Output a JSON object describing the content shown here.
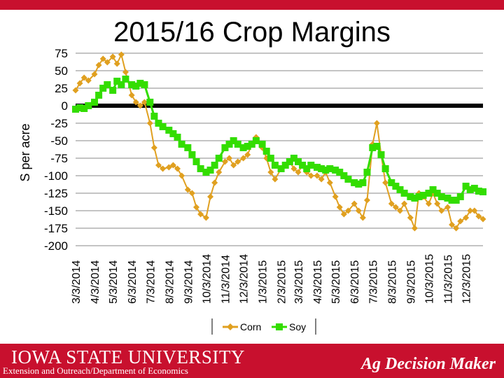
{
  "header": {
    "title": "2015/16 Crop Margins"
  },
  "footer": {
    "university": "IOWA STATE UNIVERSITY",
    "extension": "Extension and Outreach/Department of Economics",
    "brand": "Ag Decision Maker"
  },
  "colors": {
    "corn": "#e0a020",
    "soy": "#33dd00",
    "brand_red": "#c8102e"
  },
  "chart_data": {
    "type": "line",
    "title": "2015/16 Crop Margins",
    "ylabel": "S per acre",
    "xlabel": "",
    "ylim": [
      -200,
      75
    ],
    "yticks": [
      75,
      50,
      25,
      0,
      -25,
      -50,
      -75,
      -100,
      -125,
      -150,
      -175,
      -200
    ],
    "grid": true,
    "legend": "bottom",
    "x_tick_labels": [
      "3/3/2014",
      "4/3/2014",
      "5/3/2014",
      "6/3/2014",
      "7/3/2014",
      "8/3/2014",
      "9/3/2014",
      "10/3/2014",
      "11/3/2014",
      "12/3/2014",
      "1/3/2015",
      "2/3/2015",
      "3/3/2015",
      "4/3/2015",
      "5/3/2015",
      "6/3/2015",
      "7/3/2015",
      "8/3/2015",
      "9/3/2015",
      "10/3/2015",
      "11/3/2015",
      "12/3/2015"
    ],
    "series": [
      {
        "name": "Corn",
        "color": "#e0a020",
        "points": [
          [
            "3/3/2014",
            22
          ],
          [
            "3/10/2014",
            32
          ],
          [
            "3/17/2014",
            40
          ],
          [
            "3/24/2014",
            36
          ],
          [
            "4/3/2014",
            45
          ],
          [
            "4/10/2014",
            58
          ],
          [
            "4/17/2014",
            67
          ],
          [
            "4/24/2014",
            62
          ],
          [
            "5/3/2014",
            70
          ],
          [
            "5/10/2014",
            60
          ],
          [
            "5/17/2014",
            73
          ],
          [
            "5/24/2014",
            48
          ],
          [
            "6/3/2014",
            15
          ],
          [
            "6/10/2014",
            5
          ],
          [
            "6/17/2014",
            0
          ],
          [
            "6/24/2014",
            5
          ],
          [
            "7/3/2014",
            -25
          ],
          [
            "7/10/2014",
            -60
          ],
          [
            "7/17/2014",
            -85
          ],
          [
            "7/24/2014",
            -90
          ],
          [
            "8/3/2014",
            -88
          ],
          [
            "8/10/2014",
            -85
          ],
          [
            "8/17/2014",
            -90
          ],
          [
            "8/24/2014",
            -100
          ],
          [
            "9/3/2014",
            -120
          ],
          [
            "9/10/2014",
            -125
          ],
          [
            "9/17/2014",
            -145
          ],
          [
            "9/24/2014",
            -155
          ],
          [
            "10/3/2014",
            -160
          ],
          [
            "10/10/2014",
            -130
          ],
          [
            "10/17/2014",
            -110
          ],
          [
            "10/24/2014",
            -95
          ],
          [
            "11/3/2014",
            -80
          ],
          [
            "11/10/2014",
            -75
          ],
          [
            "11/17/2014",
            -85
          ],
          [
            "11/24/2014",
            -80
          ],
          [
            "12/3/2014",
            -75
          ],
          [
            "12/10/2014",
            -70
          ],
          [
            "12/17/2014",
            -55
          ],
          [
            "12/24/2014",
            -45
          ],
          [
            "1/3/2015",
            -60
          ],
          [
            "1/10/2015",
            -75
          ],
          [
            "1/17/2015",
            -95
          ],
          [
            "1/24/2015",
            -105
          ],
          [
            "2/3/2015",
            -90
          ],
          [
            "2/10/2015",
            -85
          ],
          [
            "2/17/2015",
            -80
          ],
          [
            "2/24/2015",
            -90
          ],
          [
            "3/3/2015",
            -95
          ],
          [
            "3/10/2015",
            -85
          ],
          [
            "3/17/2015",
            -95
          ],
          [
            "3/24/2015",
            -100
          ],
          [
            "4/3/2015",
            -100
          ],
          [
            "4/10/2015",
            -105
          ],
          [
            "4/17/2015",
            -95
          ],
          [
            "4/24/2015",
            -110
          ],
          [
            "5/3/2015",
            -130
          ],
          [
            "5/10/2015",
            -145
          ],
          [
            "5/17/2015",
            -155
          ],
          [
            "5/24/2015",
            -150
          ],
          [
            "6/3/2015",
            -140
          ],
          [
            "6/10/2015",
            -150
          ],
          [
            "6/17/2015",
            -160
          ],
          [
            "6/24/2015",
            -135
          ],
          [
            "7/3/2015",
            -55
          ],
          [
            "7/10/2015",
            -25
          ],
          [
            "7/17/2015",
            -70
          ],
          [
            "7/24/2015",
            -110
          ],
          [
            "8/3/2015",
            -140
          ],
          [
            "8/10/2015",
            -145
          ],
          [
            "8/17/2015",
            -150
          ],
          [
            "8/24/2015",
            -140
          ],
          [
            "9/3/2015",
            -160
          ],
          [
            "9/10/2015",
            -175
          ],
          [
            "9/17/2015",
            -125
          ],
          [
            "9/24/2015",
            -130
          ],
          [
            "10/3/2015",
            -140
          ],
          [
            "10/10/2015",
            -125
          ],
          [
            "10/17/2015",
            -140
          ],
          [
            "10/24/2015",
            -150
          ],
          [
            "11/3/2015",
            -145
          ],
          [
            "11/10/2015",
            -170
          ],
          [
            "11/17/2015",
            -175
          ],
          [
            "11/24/2015",
            -165
          ],
          [
            "12/3/2015",
            -160
          ],
          [
            "12/10/2015",
            -150
          ],
          [
            "12/17/2015",
            -150
          ],
          [
            "12/24/2015",
            -158
          ],
          [
            "12/31/2015",
            -162
          ]
        ]
      },
      {
        "name": "Soy",
        "color": "#33dd00",
        "points": [
          [
            "3/3/2014",
            -5
          ],
          [
            "3/10/2014",
            -3
          ],
          [
            "3/17/2014",
            -4
          ],
          [
            "3/24/2014",
            0
          ],
          [
            "4/3/2014",
            5
          ],
          [
            "4/10/2014",
            15
          ],
          [
            "4/17/2014",
            25
          ],
          [
            "4/24/2014",
            30
          ],
          [
            "5/3/2014",
            22
          ],
          [
            "5/10/2014",
            35
          ],
          [
            "5/17/2014",
            30
          ],
          [
            "5/24/2014",
            38
          ],
          [
            "6/3/2014",
            30
          ],
          [
            "6/10/2014",
            28
          ],
          [
            "6/17/2014",
            32
          ],
          [
            "6/24/2014",
            30
          ],
          [
            "7/3/2014",
            5
          ],
          [
            "7/10/2014",
            -15
          ],
          [
            "7/17/2014",
            -25
          ],
          [
            "7/24/2014",
            -30
          ],
          [
            "8/3/2014",
            -35
          ],
          [
            "8/10/2014",
            -40
          ],
          [
            "8/17/2014",
            -45
          ],
          [
            "8/24/2014",
            -55
          ],
          [
            "9/3/2014",
            -60
          ],
          [
            "9/10/2014",
            -70
          ],
          [
            "9/17/2014",
            -80
          ],
          [
            "9/24/2014",
            -90
          ],
          [
            "10/3/2014",
            -95
          ],
          [
            "10/10/2014",
            -92
          ],
          [
            "10/17/2014",
            -85
          ],
          [
            "10/24/2014",
            -75
          ],
          [
            "11/3/2014",
            -60
          ],
          [
            "11/10/2014",
            -55
          ],
          [
            "11/17/2014",
            -50
          ],
          [
            "11/24/2014",
            -55
          ],
          [
            "12/3/2014",
            -60
          ],
          [
            "12/10/2014",
            -58
          ],
          [
            "12/17/2014",
            -55
          ],
          [
            "12/24/2014",
            -50
          ],
          [
            "1/3/2015",
            -55
          ],
          [
            "1/10/2015",
            -65
          ],
          [
            "1/17/2015",
            -75
          ],
          [
            "1/24/2015",
            -85
          ],
          [
            "2/3/2015",
            -90
          ],
          [
            "2/10/2015",
            -85
          ],
          [
            "2/17/2015",
            -80
          ],
          [
            "2/24/2015",
            -75
          ],
          [
            "3/3/2015",
            -80
          ],
          [
            "3/10/2015",
            -85
          ],
          [
            "3/17/2015",
            -90
          ],
          [
            "3/24/2015",
            -85
          ],
          [
            "4/3/2015",
            -88
          ],
          [
            "4/10/2015",
            -90
          ],
          [
            "4/17/2015",
            -92
          ],
          [
            "4/24/2015",
            -90
          ],
          [
            "5/3/2015",
            -92
          ],
          [
            "5/10/2015",
            -95
          ],
          [
            "5/17/2015",
            -100
          ],
          [
            "5/24/2015",
            -105
          ],
          [
            "6/3/2015",
            -110
          ],
          [
            "6/10/2015",
            -112
          ],
          [
            "6/17/2015",
            -110
          ],
          [
            "6/24/2015",
            -95
          ],
          [
            "7/3/2015",
            -60
          ],
          [
            "7/10/2015",
            -58
          ],
          [
            "7/17/2015",
            -70
          ],
          [
            "7/24/2015",
            -90
          ],
          [
            "8/3/2015",
            -110
          ],
          [
            "8/10/2015",
            -115
          ],
          [
            "8/17/2015",
            -120
          ],
          [
            "8/24/2015",
            -125
          ],
          [
            "9/3/2015",
            -130
          ],
          [
            "9/10/2015",
            -132
          ],
          [
            "9/17/2015",
            -130
          ],
          [
            "9/24/2015",
            -128
          ],
          [
            "10/3/2015",
            -125
          ],
          [
            "10/10/2015",
            -120
          ],
          [
            "10/17/2015",
            -125
          ],
          [
            "10/24/2015",
            -130
          ],
          [
            "11/3/2015",
            -132
          ],
          [
            "11/10/2015",
            -135
          ],
          [
            "11/17/2015",
            -135
          ],
          [
            "11/24/2015",
            -130
          ],
          [
            "12/3/2015",
            -115
          ],
          [
            "12/10/2015",
            -120
          ],
          [
            "12/17/2015",
            -118
          ],
          [
            "12/24/2015",
            -122
          ],
          [
            "12/31/2015",
            -123
          ]
        ]
      }
    ]
  }
}
